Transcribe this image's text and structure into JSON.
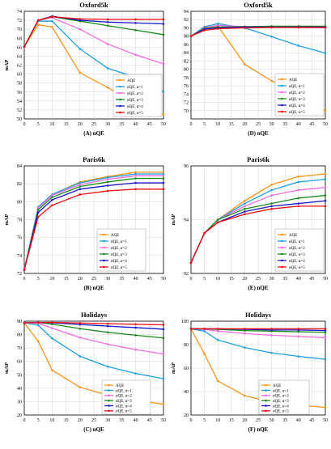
{
  "chart_data": [
    {
      "type": "line",
      "title": "Oxford5k",
      "caption": "(A)  nQE",
      "ylabel": "mAP",
      "ylim": [
        50,
        74
      ],
      "yticks": [
        50,
        52,
        54,
        56,
        58,
        60,
        62,
        64,
        66,
        68,
        70,
        72,
        74
      ],
      "x": [
        0,
        5,
        10,
        20,
        30,
        40,
        50
      ],
      "series": [
        {
          "name": "AQE",
          "color": "#f7941d",
          "values": [
            66.1,
            71.0,
            70.5,
            60.3,
            57.0,
            53.5,
            51.0
          ]
        },
        {
          "name": "αQE, α=1",
          "color": "#1f9ee0",
          "values": [
            66.1,
            71.8,
            71.8,
            65.6,
            61.3,
            59.3,
            56.1
          ]
        },
        {
          "name": "αQE, α=2",
          "color": "#f06ce0",
          "values": [
            66.1,
            72.0,
            72.6,
            70.0,
            66.7,
            64.3,
            62.3
          ]
        },
        {
          "name": "αQE, α=3",
          "color": "#1a8a1a",
          "values": [
            66.1,
            72.0,
            72.8,
            71.8,
            70.8,
            69.8,
            68.8
          ]
        },
        {
          "name": "αQE, α=4",
          "color": "#1818c8",
          "values": [
            66.1,
            72.0,
            72.9,
            72.0,
            71.6,
            71.4,
            71.2
          ]
        },
        {
          "name": "αQE, α=5",
          "color": "#e81010",
          "values": [
            66.1,
            72.0,
            72.8,
            72.3,
            72.2,
            72.2,
            72.2
          ]
        }
      ]
    },
    {
      "type": "line",
      "title": "Oxford5k",
      "caption": "(D)  nQE",
      "ylabel": "",
      "ylim": [
        68,
        94
      ],
      "yticks": [
        70,
        72,
        74,
        76,
        78,
        80,
        82,
        84,
        86,
        88,
        90,
        92,
        94
      ],
      "x": [
        0,
        5,
        10,
        20,
        30,
        40,
        50
      ],
      "series": [
        {
          "name": "AQE",
          "color": "#f7941d",
          "values": [
            88.0,
            90.0,
            90.5,
            81.2,
            77.2,
            74.4,
            70.0
          ]
        },
        {
          "name": "αQE, α=1",
          "color": "#1f9ee0",
          "values": [
            88.0,
            90.3,
            91.0,
            90.0,
            87.9,
            85.7,
            83.9
          ]
        },
        {
          "name": "αQE, α=2",
          "color": "#f06ce0",
          "values": [
            88.0,
            90.1,
            90.6,
            90.3,
            90.2,
            90.1,
            90.0
          ]
        },
        {
          "name": "αQE, α=3",
          "color": "#1a8a1a",
          "values": [
            88.0,
            89.9,
            90.2,
            90.3,
            90.4,
            90.4,
            90.4
          ]
        },
        {
          "name": "αQE, α=4",
          "color": "#1818c8",
          "values": [
            88.0,
            89.7,
            90.0,
            90.2,
            90.2,
            90.2,
            90.2
          ]
        },
        {
          "name": "αQE, α=5",
          "color": "#e81010",
          "values": [
            88.0,
            89.4,
            89.8,
            90.0,
            90.1,
            90.1,
            90.1
          ]
        }
      ]
    },
    {
      "type": "line",
      "title": "Paris6k",
      "caption": "(B)  nQE",
      "ylabel": "mAP",
      "ylim": [
        72,
        84
      ],
      "yticks": [
        72,
        74,
        76,
        78,
        80,
        82,
        84
      ],
      "x": [
        0,
        5,
        10,
        20,
        30,
        40,
        50
      ],
      "series": [
        {
          "name": "AQE",
          "color": "#f7941d",
          "values": [
            72.4,
            79.4,
            80.8,
            82.2,
            82.8,
            83.3,
            83.3
          ]
        },
        {
          "name": "αQE, α=1",
          "color": "#1f9ee0",
          "values": [
            72.4,
            79.4,
            80.8,
            82.1,
            82.7,
            83.1,
            83.1
          ]
        },
        {
          "name": "αQE, α=2",
          "color": "#f06ce0",
          "values": [
            72.4,
            79.3,
            80.7,
            81.9,
            82.5,
            82.9,
            82.9
          ]
        },
        {
          "name": "αQE, α=3",
          "color": "#1a8a1a",
          "values": [
            72.4,
            79.1,
            80.5,
            81.7,
            82.2,
            82.6,
            82.6
          ]
        },
        {
          "name": "αQE, α=4",
          "color": "#1818c8",
          "values": [
            72.4,
            78.8,
            80.2,
            81.4,
            81.8,
            82.1,
            82.1
          ]
        },
        {
          "name": "αQE, α=5",
          "color": "#e81010",
          "values": [
            72.4,
            78.3,
            79.6,
            80.8,
            81.2,
            81.4,
            81.4
          ]
        }
      ]
    },
    {
      "type": "line",
      "title": "Paris6k",
      "caption": "(E)  nQE",
      "ylabel": "mAP",
      "ylim": [
        92,
        96
      ],
      "yticks": [
        92,
        94,
        96
      ],
      "x": [
        0,
        5,
        10,
        20,
        30,
        40,
        50
      ],
      "series": [
        {
          "name": "AQE",
          "color": "#f7941d",
          "values": [
            92.4,
            93.5,
            94.0,
            94.7,
            95.3,
            95.6,
            95.7
          ]
        },
        {
          "name": "αQE, α=1",
          "color": "#1f9ee0",
          "values": [
            92.4,
            93.5,
            94.0,
            94.6,
            95.1,
            95.4,
            95.5
          ]
        },
        {
          "name": "αQE, α=2",
          "color": "#f06ce0",
          "values": [
            92.4,
            93.5,
            94.0,
            94.5,
            94.9,
            95.1,
            95.2
          ]
        },
        {
          "name": "αQE, α=3",
          "color": "#1a8a1a",
          "values": [
            92.4,
            93.5,
            94.0,
            94.4,
            94.6,
            94.8,
            94.9
          ]
        },
        {
          "name": "αQE, α=4",
          "color": "#1818c8",
          "values": [
            92.4,
            93.5,
            93.9,
            94.3,
            94.5,
            94.6,
            94.7
          ]
        },
        {
          "name": "αQE, α=5",
          "color": "#e81010",
          "values": [
            92.4,
            93.5,
            93.9,
            94.2,
            94.4,
            94.5,
            94.5
          ]
        }
      ]
    },
    {
      "type": "line",
      "title": "Holidays",
      "caption": "(C)  nQE",
      "ylabel": "mAP",
      "ylim": [
        20,
        90
      ],
      "yticks": [
        20,
        30,
        40,
        50,
        60,
        70,
        80,
        90
      ],
      "x": [
        0,
        5,
        10,
        20,
        30,
        40,
        50
      ],
      "series": [
        {
          "name": "AQE",
          "color": "#f7941d",
          "values": [
            88.8,
            75.0,
            53.5,
            40.7,
            34.9,
            31.0,
            28.1
          ]
        },
        {
          "name": "αQE, α=1",
          "color": "#1f9ee0",
          "values": [
            88.8,
            87.0,
            77.2,
            63.8,
            56.1,
            51.0,
            47.1
          ]
        },
        {
          "name": "αQE, α=2",
          "color": "#f06ce0",
          "values": [
            88.8,
            88.5,
            84.8,
            77.8,
            72.8,
            68.8,
            65.5
          ]
        },
        {
          "name": "αQE, α=3",
          "color": "#1a8a1a",
          "values": [
            88.8,
            89.0,
            87.8,
            84.4,
            81.7,
            79.5,
            77.5
          ]
        },
        {
          "name": "αQE, α=4",
          "color": "#1818c8",
          "values": [
            88.8,
            89.0,
            88.8,
            87.5,
            86.3,
            85.2,
            84.0
          ]
        },
        {
          "name": "αQE, α=5",
          "color": "#e81010",
          "values": [
            88.8,
            89.0,
            89.1,
            88.6,
            88.1,
            87.7,
            87.3
          ]
        }
      ]
    },
    {
      "type": "line",
      "title": "Holidays",
      "caption": "(F)  nQE",
      "ylabel": "mAP",
      "ylim": [
        20,
        100
      ],
      "yticks": [
        20,
        40,
        60,
        80,
        100
      ],
      "x": [
        0,
        5,
        10,
        20,
        30,
        40,
        50
      ],
      "series": [
        {
          "name": "AQE",
          "color": "#f7941d",
          "values": [
            93.5,
            72.0,
            49.0,
            36.5,
            31.0,
            28.5,
            26.5
          ]
        },
        {
          "name": "αQE, α=1",
          "color": "#1f9ee0",
          "values": [
            93.5,
            91.5,
            84.0,
            77.5,
            73.0,
            70.0,
            67.5
          ]
        },
        {
          "name": "αQE, α=2",
          "color": "#f06ce0",
          "values": [
            93.5,
            93.0,
            91.5,
            89.5,
            88.0,
            87.0,
            86.0
          ]
        },
        {
          "name": "αQE, α=3",
          "color": "#1a8a1a",
          "values": [
            93.5,
            93.5,
            93.0,
            92.0,
            91.5,
            91.0,
            90.5
          ]
        },
        {
          "name": "αQE, α=4",
          "color": "#1818c8",
          "values": [
            93.5,
            93.5,
            93.5,
            93.0,
            92.5,
            92.5,
            92.0
          ]
        },
        {
          "name": "αQE, α=5",
          "color": "#e81010",
          "values": [
            93.5,
            93.5,
            93.5,
            93.5,
            93.5,
            93.5,
            93.5
          ]
        }
      ]
    }
  ]
}
